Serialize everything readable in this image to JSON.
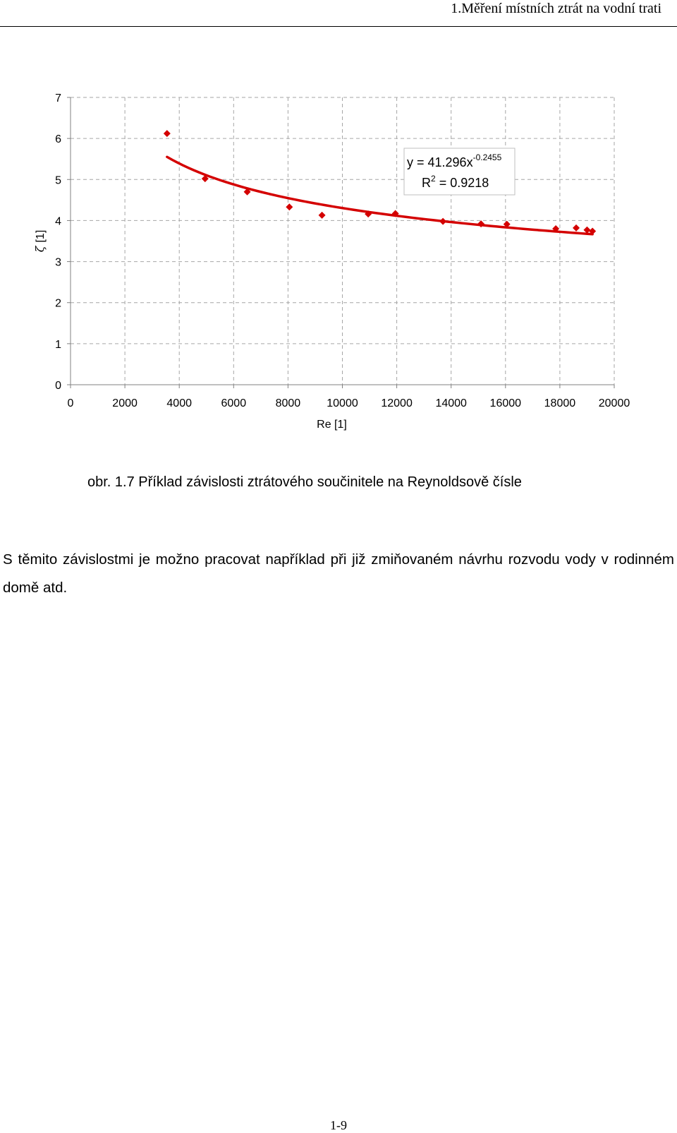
{
  "page": {
    "running_header": "1.Měření místních ztrát na vodní trati",
    "caption": "obr. 1.7 Příklad závislosti ztrátového součinitele na Reynoldsově čísle",
    "body_text": "S těmito závislostmi je možno pracovat například při již zmiňovaném návrhu rozvodu vody v rodinném domě atd.",
    "page_number": "1-9"
  },
  "chart_data": {
    "type": "scatter",
    "title": "",
    "xlabel": "Re  [1]",
    "ylabel_symbol": "ζ",
    "ylabel_unit": "[1]",
    "xlim": [
      0,
      20000
    ],
    "ylim": [
      0,
      7
    ],
    "xticks": [
      0,
      2000,
      4000,
      6000,
      8000,
      10000,
      12000,
      14000,
      16000,
      18000,
      20000
    ],
    "yticks": [
      0,
      1,
      2,
      3,
      4,
      5,
      6,
      7
    ],
    "grid": true,
    "grid_style": "dashed",
    "marker": "diamond",
    "series": [
      {
        "color": "#d40000",
        "x": [
          3550,
          4950,
          6500,
          8050,
          9250,
          10950,
          11950,
          13700,
          15100,
          16050,
          17850,
          18600,
          19000,
          19200
        ],
        "y": [
          6.12,
          5.02,
          4.7,
          4.33,
          4.13,
          4.16,
          4.17,
          3.98,
          3.92,
          3.91,
          3.8,
          3.82,
          3.77,
          3.74
        ]
      }
    ],
    "trendline": {
      "type": "power",
      "coefficient": 41.296,
      "exponent": -0.2455,
      "x_range": [
        3550,
        19200
      ],
      "color": "#d40000",
      "equation_prefix": "y = 41.296x",
      "equation_exponent": "-0.2455",
      "r2_label": "R",
      "r2_superscript": "2",
      "r2_value": " = 0.9218"
    }
  }
}
